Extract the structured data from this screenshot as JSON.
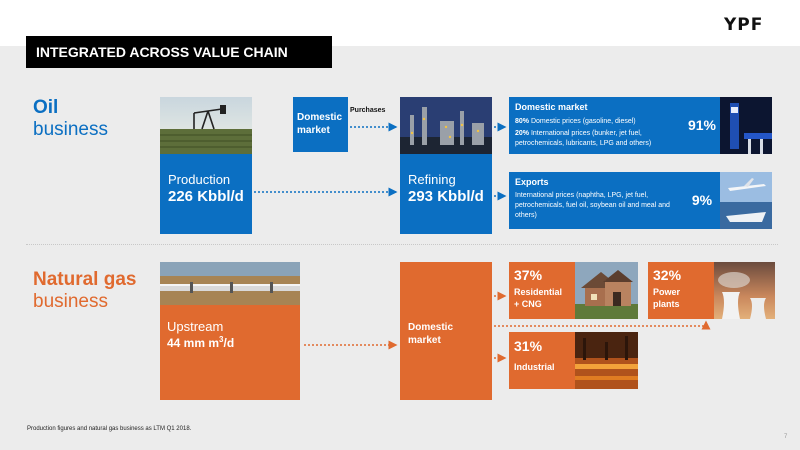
{
  "brand": {
    "logo_text": "YPF"
  },
  "slide": {
    "title": "INTEGRATED ACROSS VALUE CHAIN",
    "page_number": "7"
  },
  "oil": {
    "title_bold": "Oil",
    "title_rest": "business",
    "production": {
      "label": "Production",
      "value": "226 Kbbl/d"
    },
    "purchases_label": "Purchases",
    "domestic_purchase": {
      "line1": "Domestic",
      "line2": "market"
    },
    "refining": {
      "label": "Refining",
      "value": "293 Kbbl/d"
    },
    "domestic_market": {
      "title": "Domestic market",
      "line1_bold": "80%",
      "line1_text": " Domestic prices (gasoline, diesel)",
      "line2_bold": "20%",
      "line2_text": " International prices (bunker, jet fuel, petrochemicals, lubricants, LPG and others)",
      "share": "91%"
    },
    "exports": {
      "title": "Exports",
      "text": "International prices (naphtha, LPG, jet fuel, petrochemicals, fuel oil, soybean oil and meal and others)",
      "share": "9%"
    }
  },
  "gas": {
    "title_bold": "Natural gas",
    "title_rest": "business",
    "upstream": {
      "label": "Upstream",
      "value_prefix": "44 mm m",
      "value_sup": "3",
      "value_suffix": "/d"
    },
    "domestic_market": {
      "line1": "Domestic",
      "line2": "market"
    },
    "residential": {
      "share": "37%",
      "line1": "Residential",
      "line2": "+ CNG"
    },
    "power": {
      "share": "32%",
      "line1": "Power",
      "line2": "plants"
    },
    "industrial": {
      "share": "31%",
      "label": "Industrial"
    }
  },
  "footnote": "Production figures and natural gas business as LTM Q1 2018."
}
